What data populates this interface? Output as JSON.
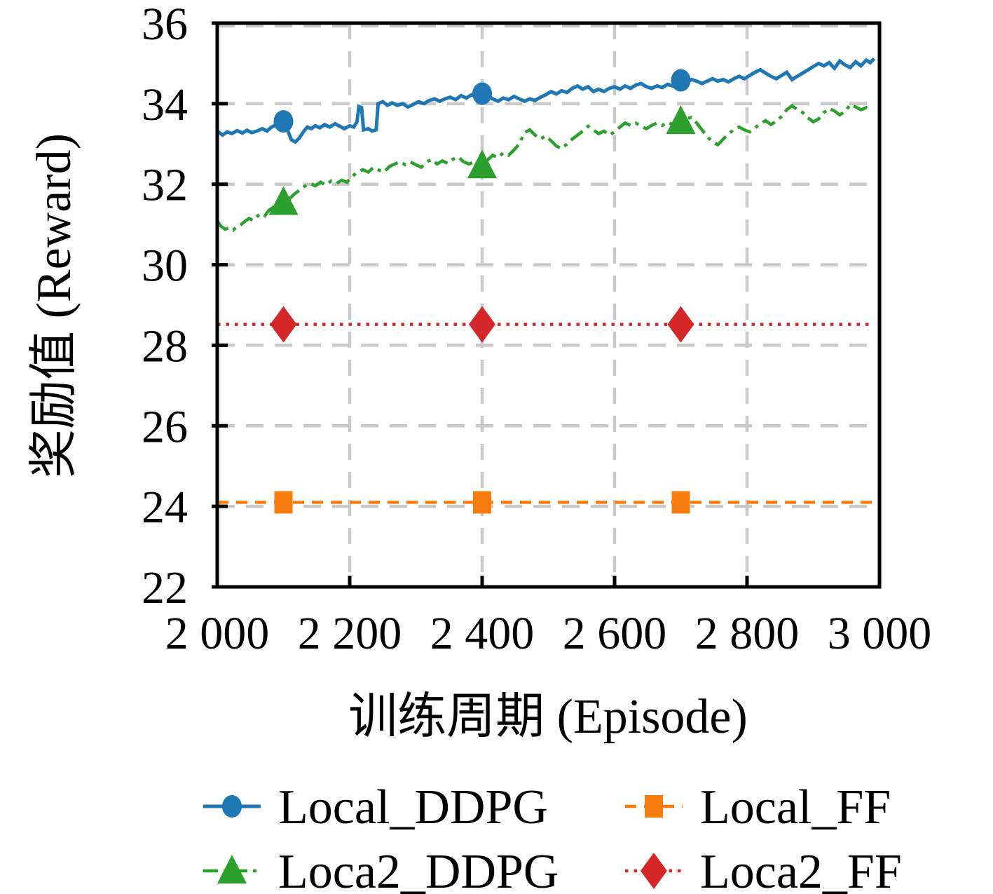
{
  "chart_data": {
    "type": "line",
    "title": "",
    "xlabel": "训练周期 (Episode)",
    "ylabel": "奖励值 (Reward)",
    "xlim": [
      2000,
      3000
    ],
    "ylim": [
      22,
      36
    ],
    "grid": {
      "on": true,
      "color": "#c9c9c9",
      "vertical": [
        2200,
        2400,
        2600,
        2800
      ],
      "horizontal": [
        24,
        26,
        28,
        30,
        32,
        34,
        36
      ]
    },
    "x_ticks": {
      "values": [
        2000,
        2200,
        2400,
        2600,
        2800,
        3000
      ],
      "labels": [
        "2 000",
        "2 200",
        "2 400",
        "2 600",
        "2 800",
        "3 000"
      ]
    },
    "y_ticks": {
      "values": [
        22,
        24,
        26,
        28,
        30,
        32,
        34,
        36
      ],
      "labels": [
        "22",
        "24",
        "26",
        "28",
        "30",
        "32",
        "34",
        "36"
      ]
    },
    "legend": {
      "position": "below",
      "rows": [
        [
          "Local_DDPG",
          "Local_FF"
        ],
        [
          "Loca2_DDPG",
          "Loca2_FF"
        ]
      ]
    },
    "series": [
      {
        "name": "Local_DDPG",
        "color": "#1f77b4",
        "line_style": "solid",
        "line_width": 5,
        "marker": "circle",
        "marker_points": [
          [
            2100,
            33.56
          ],
          [
            2400,
            34.25
          ],
          [
            2700,
            34.58
          ]
        ],
        "points": [
          [
            2000,
            33.32
          ],
          [
            2008,
            33.22
          ],
          [
            2015,
            33.3
          ],
          [
            2022,
            33.26
          ],
          [
            2030,
            33.33
          ],
          [
            2038,
            33.27
          ],
          [
            2045,
            33.34
          ],
          [
            2052,
            33.28
          ],
          [
            2060,
            33.32
          ],
          [
            2068,
            33.38
          ],
          [
            2075,
            33.32
          ],
          [
            2082,
            33.42
          ],
          [
            2090,
            33.48
          ],
          [
            2100,
            33.56
          ],
          [
            2106,
            33.35
          ],
          [
            2112,
            33.1
          ],
          [
            2118,
            33.05
          ],
          [
            2124,
            33.15
          ],
          [
            2130,
            33.3
          ],
          [
            2136,
            33.42
          ],
          [
            2142,
            33.38
          ],
          [
            2148,
            33.45
          ],
          [
            2155,
            33.4
          ],
          [
            2162,
            33.48
          ],
          [
            2170,
            33.42
          ],
          [
            2178,
            33.5
          ],
          [
            2185,
            33.44
          ],
          [
            2192,
            33.38
          ],
          [
            2200,
            33.45
          ],
          [
            2206,
            33.42
          ],
          [
            2211,
            33.55
          ],
          [
            2214,
            33.93
          ],
          [
            2218,
            33.9
          ],
          [
            2221,
            33.35
          ],
          [
            2228,
            33.38
          ],
          [
            2234,
            33.32
          ],
          [
            2240,
            33.35
          ],
          [
            2243,
            34.0
          ],
          [
            2250,
            34.05
          ],
          [
            2257,
            33.96
          ],
          [
            2264,
            34.02
          ],
          [
            2272,
            33.96
          ],
          [
            2280,
            34.0
          ],
          [
            2288,
            33.92
          ],
          [
            2296,
            33.98
          ],
          [
            2304,
            34.05
          ],
          [
            2312,
            34.0
          ],
          [
            2320,
            34.08
          ],
          [
            2328,
            34.12
          ],
          [
            2336,
            34.06
          ],
          [
            2344,
            34.12
          ],
          [
            2352,
            34.16
          ],
          [
            2360,
            34.1
          ],
          [
            2368,
            34.2
          ],
          [
            2376,
            34.14
          ],
          [
            2384,
            34.22
          ],
          [
            2392,
            34.18
          ],
          [
            2400,
            34.25
          ],
          [
            2408,
            34.2
          ],
          [
            2416,
            34.12
          ],
          [
            2424,
            34.06
          ],
          [
            2432,
            34.14
          ],
          [
            2440,
            34.1
          ],
          [
            2448,
            34.18
          ],
          [
            2456,
            34.12
          ],
          [
            2464,
            34.06
          ],
          [
            2472,
            34.12
          ],
          [
            2480,
            34.08
          ],
          [
            2488,
            34.16
          ],
          [
            2496,
            34.22
          ],
          [
            2504,
            34.3
          ],
          [
            2512,
            34.24
          ],
          [
            2520,
            34.32
          ],
          [
            2528,
            34.28
          ],
          [
            2536,
            34.38
          ],
          [
            2544,
            34.44
          ],
          [
            2552,
            34.36
          ],
          [
            2560,
            34.42
          ],
          [
            2568,
            34.3
          ],
          [
            2576,
            34.36
          ],
          [
            2584,
            34.3
          ],
          [
            2592,
            34.38
          ],
          [
            2600,
            34.42
          ],
          [
            2608,
            34.36
          ],
          [
            2616,
            34.44
          ],
          [
            2624,
            34.38
          ],
          [
            2632,
            34.46
          ],
          [
            2640,
            34.5
          ],
          [
            2648,
            34.42
          ],
          [
            2656,
            34.38
          ],
          [
            2664,
            34.44
          ],
          [
            2672,
            34.4
          ],
          [
            2680,
            34.48
          ],
          [
            2688,
            34.44
          ],
          [
            2700,
            34.58
          ],
          [
            2708,
            34.52
          ],
          [
            2716,
            34.6
          ],
          [
            2724,
            34.56
          ],
          [
            2732,
            34.5
          ],
          [
            2740,
            34.56
          ],
          [
            2748,
            34.62
          ],
          [
            2756,
            34.56
          ],
          [
            2764,
            34.6
          ],
          [
            2772,
            34.54
          ],
          [
            2780,
            34.62
          ],
          [
            2788,
            34.68
          ],
          [
            2796,
            34.62
          ],
          [
            2804,
            34.7
          ],
          [
            2812,
            34.78
          ],
          [
            2820,
            34.84
          ],
          [
            2828,
            34.76
          ],
          [
            2836,
            34.68
          ],
          [
            2844,
            34.62
          ],
          [
            2852,
            34.7
          ],
          [
            2860,
            34.78
          ],
          [
            2868,
            34.6
          ],
          [
            2876,
            34.68
          ],
          [
            2884,
            34.76
          ],
          [
            2892,
            34.84
          ],
          [
            2900,
            34.92
          ],
          [
            2908,
            35.0
          ],
          [
            2916,
            34.94
          ],
          [
            2924,
            35.02
          ],
          [
            2932,
            34.88
          ],
          [
            2940,
            35.06
          ],
          [
            2948,
            34.96
          ],
          [
            2956,
            34.9
          ],
          [
            2964,
            35.04
          ],
          [
            2972,
            34.94
          ],
          [
            2980,
            35.08
          ],
          [
            2986,
            35.02
          ],
          [
            2992,
            35.12
          ]
        ]
      },
      {
        "name": "Loca2_DDPG",
        "color": "#2ca02c",
        "line_style": "dashdot",
        "line_width": 4.5,
        "marker": "triangle",
        "marker_points": [
          [
            2100,
            31.55
          ],
          [
            2400,
            32.46
          ],
          [
            2700,
            33.56
          ]
        ],
        "points": [
          [
            2000,
            31.08
          ],
          [
            2006,
            30.95
          ],
          [
            2012,
            30.88
          ],
          [
            2018,
            30.92
          ],
          [
            2024,
            30.86
          ],
          [
            2030,
            30.95
          ],
          [
            2036,
            31.0
          ],
          [
            2042,
            31.08
          ],
          [
            2048,
            31.15
          ],
          [
            2054,
            31.1
          ],
          [
            2060,
            31.2
          ],
          [
            2066,
            31.28
          ],
          [
            2072,
            31.22
          ],
          [
            2078,
            31.35
          ],
          [
            2084,
            31.42
          ],
          [
            2090,
            31.48
          ],
          [
            2100,
            31.55
          ],
          [
            2108,
            31.62
          ],
          [
            2116,
            31.75
          ],
          [
            2124,
            31.85
          ],
          [
            2132,
            31.95
          ],
          [
            2140,
            32.02
          ],
          [
            2148,
            31.96
          ],
          [
            2156,
            32.05
          ],
          [
            2164,
            31.98
          ],
          [
            2172,
            32.08
          ],
          [
            2180,
            32.02
          ],
          [
            2188,
            32.1
          ],
          [
            2196,
            32.05
          ],
          [
            2204,
            32.2
          ],
          [
            2212,
            32.3
          ],
          [
            2220,
            32.36
          ],
          [
            2228,
            32.3
          ],
          [
            2236,
            32.42
          ],
          [
            2244,
            32.35
          ],
          [
            2252,
            32.3
          ],
          [
            2260,
            32.44
          ],
          [
            2268,
            32.5
          ],
          [
            2276,
            32.56
          ],
          [
            2284,
            32.48
          ],
          [
            2292,
            32.55
          ],
          [
            2300,
            32.48
          ],
          [
            2308,
            32.42
          ],
          [
            2316,
            32.55
          ],
          [
            2324,
            32.62
          ],
          [
            2332,
            32.5
          ],
          [
            2340,
            32.58
          ],
          [
            2348,
            32.52
          ],
          [
            2356,
            32.62
          ],
          [
            2364,
            32.68
          ],
          [
            2372,
            32.56
          ],
          [
            2380,
            32.5
          ],
          [
            2388,
            32.56
          ],
          [
            2400,
            32.46
          ],
          [
            2408,
            32.6
          ],
          [
            2416,
            32.72
          ],
          [
            2424,
            32.66
          ],
          [
            2432,
            32.78
          ],
          [
            2440,
            32.72
          ],
          [
            2448,
            32.85
          ],
          [
            2456,
            33.0
          ],
          [
            2464,
            33.28
          ],
          [
            2472,
            33.35
          ],
          [
            2480,
            33.22
          ],
          [
            2488,
            33.12
          ],
          [
            2496,
            33.2
          ],
          [
            2504,
            33.08
          ],
          [
            2512,
            32.95
          ],
          [
            2520,
            32.88
          ],
          [
            2528,
            33.0
          ],
          [
            2536,
            33.12
          ],
          [
            2544,
            33.22
          ],
          [
            2552,
            33.32
          ],
          [
            2560,
            33.44
          ],
          [
            2568,
            33.35
          ],
          [
            2576,
            33.25
          ],
          [
            2584,
            33.32
          ],
          [
            2592,
            33.22
          ],
          [
            2600,
            33.3
          ],
          [
            2608,
            33.42
          ],
          [
            2616,
            33.52
          ],
          [
            2624,
            33.46
          ],
          [
            2632,
            33.52
          ],
          [
            2640,
            33.44
          ],
          [
            2648,
            33.38
          ],
          [
            2656,
            33.46
          ],
          [
            2664,
            33.52
          ],
          [
            2672,
            33.46
          ],
          [
            2680,
            33.54
          ],
          [
            2688,
            33.48
          ],
          [
            2700,
            33.56
          ],
          [
            2708,
            33.62
          ],
          [
            2716,
            33.66
          ],
          [
            2724,
            33.52
          ],
          [
            2732,
            33.35
          ],
          [
            2740,
            33.18
          ],
          [
            2748,
            33.05
          ],
          [
            2756,
            32.98
          ],
          [
            2764,
            33.12
          ],
          [
            2772,
            33.25
          ],
          [
            2780,
            33.35
          ],
          [
            2788,
            33.42
          ],
          [
            2796,
            33.35
          ],
          [
            2804,
            33.3
          ],
          [
            2812,
            33.4
          ],
          [
            2820,
            33.5
          ],
          [
            2828,
            33.58
          ],
          [
            2836,
            33.48
          ],
          [
            2844,
            33.56
          ],
          [
            2852,
            33.68
          ],
          [
            2860,
            33.85
          ],
          [
            2868,
            33.95
          ],
          [
            2876,
            33.85
          ],
          [
            2884,
            33.78
          ],
          [
            2892,
            33.65
          ],
          [
            2900,
            33.55
          ],
          [
            2908,
            33.62
          ],
          [
            2916,
            33.78
          ],
          [
            2924,
            33.88
          ],
          [
            2932,
            33.82
          ],
          [
            2940,
            33.72
          ],
          [
            2948,
            33.8
          ],
          [
            2956,
            33.98
          ],
          [
            2964,
            33.92
          ],
          [
            2972,
            33.85
          ],
          [
            2980,
            33.9
          ],
          [
            2986,
            33.78
          ]
        ]
      },
      {
        "name": "Local_FF",
        "color": "#f97d0e",
        "line_style": "dashed",
        "line_width": 4.5,
        "marker": "square",
        "marker_points": [
          [
            2100,
            24.1
          ],
          [
            2400,
            24.1
          ],
          [
            2700,
            24.1
          ]
        ],
        "points": [
          [
            2000,
            24.1
          ],
          [
            2992,
            24.1
          ]
        ]
      },
      {
        "name": "Loca2_FF",
        "color": "#d62728",
        "line_style": "dotted",
        "line_width": 4.5,
        "marker": "diamond",
        "marker_points": [
          [
            2100,
            28.52
          ],
          [
            2400,
            28.52
          ],
          [
            2700,
            28.52
          ]
        ],
        "points": [
          [
            2000,
            28.52
          ],
          [
            2992,
            28.52
          ]
        ]
      }
    ]
  }
}
